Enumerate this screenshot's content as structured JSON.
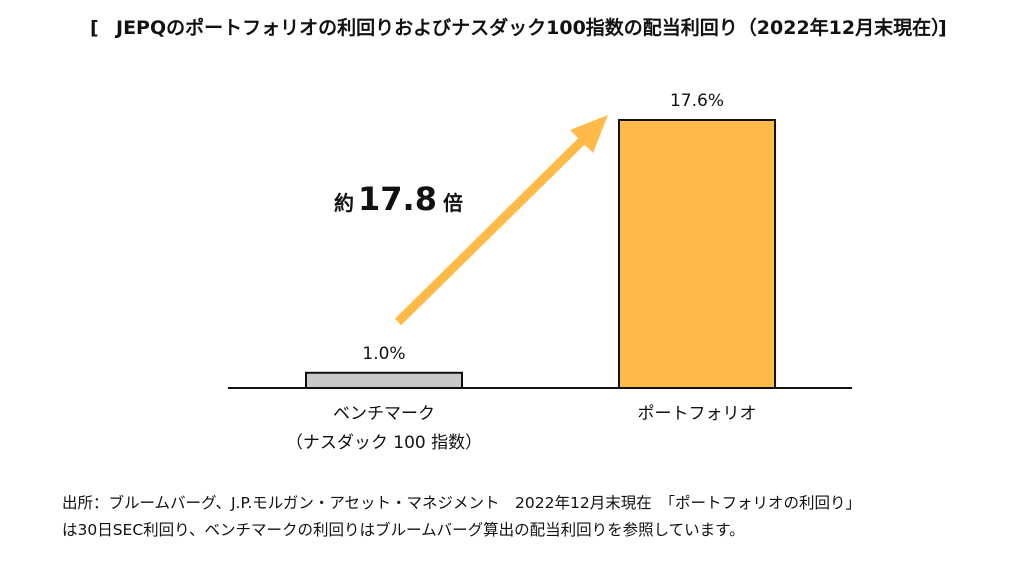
{
  "chart_data": {
    "type": "bar",
    "title": "JEPQのポートフォリオの利回りおよびナスダック100指数の配当利回り（2022年12月末現在）",
    "title_bracket_open": "[",
    "title_bracket_close": "]",
    "categories": [
      "ベンチマーク（ナスダック 100 指数）",
      "ポートフォリオ"
    ],
    "category_lines": [
      [
        "ベンチマーク",
        "（ナスダック 100 指数）"
      ],
      [
        "ポートフォリオ"
      ]
    ],
    "values": [
      1.0,
      17.6
    ],
    "value_labels": [
      "1.0%",
      "17.6%"
    ],
    "unit": "%",
    "ylim": [
      0,
      17.6
    ],
    "xlabel": "",
    "ylabel": "",
    "grid": false,
    "colors": [
      "#c8c8c8",
      "#ffba47"
    ],
    "arrow_color": "#ffba47",
    "annotation": {
      "prefix": "約",
      "value": "17.8",
      "suffix": "倍"
    }
  },
  "footnote": {
    "line1": "出所：ブルームバーグ、J.P.モルガン・アセット・マネジメント　2022年12月末現在　「ポートフォリオの利回り」",
    "line2": "は30日SEC利回り、ベンチマークの利回りはブルームバーグ算出の配当利回りを参照しています。"
  }
}
